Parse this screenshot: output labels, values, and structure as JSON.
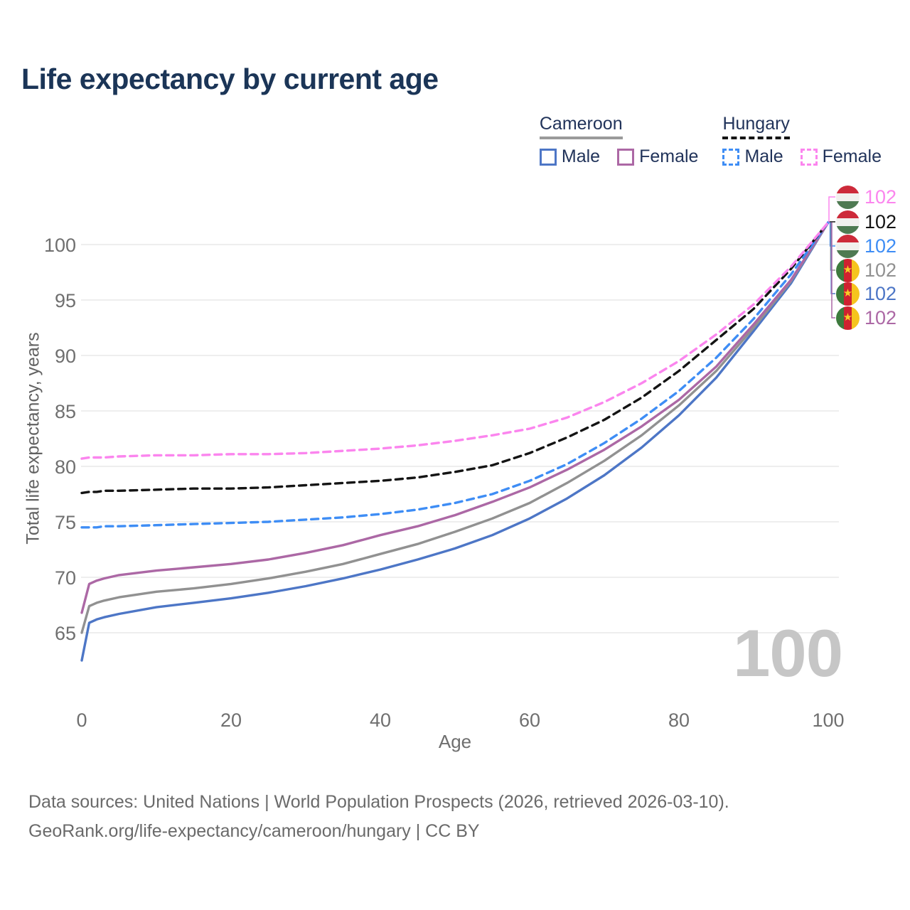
{
  "title": "Life expectancy by current age",
  "legend": {
    "groups": [
      {
        "label": "Cameroon",
        "line_style": "solid",
        "line_color": "#9a9a9a",
        "items": [
          {
            "label": "Male",
            "color": "#4d76c6",
            "dashed": false
          },
          {
            "label": "Female",
            "color": "#ac68a5",
            "dashed": false
          }
        ]
      },
      {
        "label": "Hungary",
        "line_style": "dashed",
        "line_color": "#141414",
        "items": [
          {
            "label": "Male",
            "color": "#3e8df5",
            "dashed": true
          },
          {
            "label": "Female",
            "color": "#fb85ee",
            "dashed": true
          }
        ]
      }
    ]
  },
  "chart_data": {
    "type": "line",
    "title": "Life expectancy by current age",
    "xlabel": "Age",
    "ylabel": "Total life expectancy, years",
    "grid": "horizontal",
    "legend_position": "top-right",
    "xlim": [
      0,
      100
    ],
    "ylim": [
      62,
      103
    ],
    "x_ticks": [
      0,
      20,
      40,
      60,
      80,
      100
    ],
    "y_ticks": [
      65,
      70,
      75,
      80,
      85,
      90,
      95,
      100
    ],
    "ages": [
      0,
      1,
      2,
      3,
      5,
      10,
      15,
      20,
      25,
      30,
      35,
      40,
      45,
      50,
      55,
      60,
      65,
      70,
      75,
      80,
      85,
      90,
      95,
      100
    ],
    "series": [
      {
        "id": "cameroon-male",
        "name": "Cameroon Male",
        "country": "Cameroon",
        "sex": "Male",
        "color": "#4d76c6",
        "dashed": false,
        "values": [
          62.5,
          65.9,
          66.2,
          66.4,
          66.7,
          67.3,
          67.7,
          68.1,
          68.6,
          69.2,
          69.9,
          70.7,
          71.6,
          72.6,
          73.8,
          75.3,
          77.1,
          79.2,
          81.7,
          84.6,
          88.0,
          92.2,
          96.5,
          102
        ]
      },
      {
        "id": "cameroon-both",
        "name": "Cameroon (both sexes)",
        "country": "Cameroon",
        "sex": "Both",
        "color": "#919191",
        "dashed": false,
        "values": [
          65.0,
          67.4,
          67.7,
          67.9,
          68.2,
          68.7,
          69.0,
          69.4,
          69.9,
          70.5,
          71.2,
          72.1,
          73.0,
          74.1,
          75.3,
          76.7,
          78.5,
          80.5,
          82.8,
          85.5,
          88.6,
          92.5,
          96.7,
          102
        ]
      },
      {
        "id": "cameroon-female",
        "name": "Cameroon Female",
        "country": "Cameroon",
        "sex": "Female",
        "color": "#ac68a5",
        "dashed": false,
        "values": [
          66.8,
          69.4,
          69.7,
          69.9,
          70.2,
          70.6,
          70.9,
          71.2,
          71.6,
          72.2,
          72.9,
          73.8,
          74.6,
          75.6,
          76.8,
          78.1,
          79.7,
          81.5,
          83.6,
          86.0,
          89.0,
          92.8,
          96.8,
          102
        ]
      },
      {
        "id": "hungary-male",
        "name": "Hungary Male",
        "country": "Hungary",
        "sex": "Male",
        "color": "#3e8df5",
        "dashed": true,
        "values": [
          74.5,
          74.5,
          74.5,
          74.6,
          74.6,
          74.7,
          74.8,
          74.9,
          75.0,
          75.2,
          75.4,
          75.7,
          76.1,
          76.7,
          77.5,
          78.7,
          80.2,
          82.1,
          84.3,
          86.8,
          89.8,
          93.3,
          97.3,
          102
        ]
      },
      {
        "id": "hungary-both",
        "name": "Hungary (both sexes)",
        "country": "Hungary",
        "sex": "Both",
        "color": "#141414",
        "dashed": true,
        "values": [
          77.6,
          77.7,
          77.7,
          77.8,
          77.8,
          77.9,
          78.0,
          78.0,
          78.1,
          78.3,
          78.5,
          78.7,
          79.0,
          79.5,
          80.1,
          81.2,
          82.6,
          84.2,
          86.2,
          88.6,
          91.4,
          94.2,
          97.8,
          102
        ]
      },
      {
        "id": "hungary-female",
        "name": "Hungary Female",
        "country": "Hungary",
        "sex": "Female",
        "color": "#fb85ee",
        "dashed": true,
        "values": [
          80.7,
          80.8,
          80.8,
          80.8,
          80.9,
          81.0,
          81.0,
          81.1,
          81.1,
          81.2,
          81.4,
          81.6,
          81.9,
          82.3,
          82.8,
          83.4,
          84.4,
          85.8,
          87.5,
          89.5,
          91.9,
          94.6,
          98.0,
          102
        ]
      }
    ],
    "end_labels": [
      {
        "flag": "hungary",
        "series": "Hungary Female",
        "value": "102",
        "color": "#fb85ee"
      },
      {
        "flag": "hungary",
        "series": "Hungary (both sexes)",
        "value": "102",
        "color": "#141414"
      },
      {
        "flag": "hungary",
        "series": "Hungary Male",
        "value": "102",
        "color": "#3e8df5"
      },
      {
        "flag": "cameroon",
        "series": "Cameroon (both sexes)",
        "value": "102",
        "color": "#919191"
      },
      {
        "flag": "cameroon",
        "series": "Cameroon Male",
        "value": "102",
        "color": "#4d76c6"
      },
      {
        "flag": "cameroon",
        "series": "Cameroon Female",
        "value": "102",
        "color": "#ac68a5"
      }
    ],
    "watermark": "100"
  },
  "icons": {
    "cameroon_star": "★"
  },
  "footer": {
    "line1": "Data sources: United Nations | World Population Prospects (2026, retrieved 2026-03-10).",
    "line2": "GeoRank.org/life-expectancy/cameroon/hungary | CC BY"
  }
}
